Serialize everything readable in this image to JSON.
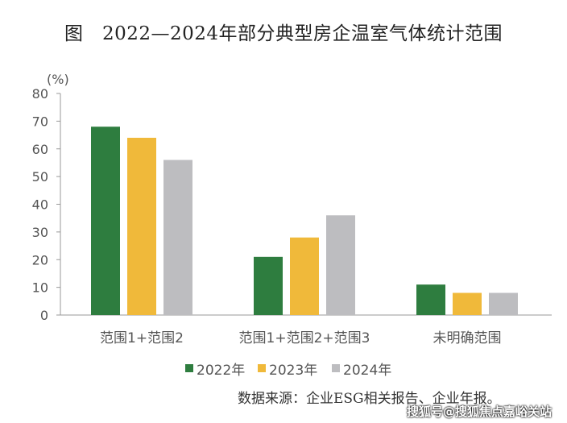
{
  "chart_data": {
    "type": "bar",
    "title": "图　2022—2024年部分典型房企温室气体统计范围",
    "ylabel": "(%)",
    "ylim": [
      0,
      80
    ],
    "yticks": [
      0,
      10,
      20,
      30,
      40,
      50,
      60,
      70,
      80
    ],
    "categories": [
      "范围1+范围2",
      "范围1+范围2+范围3",
      "未明确范围"
    ],
    "series": [
      {
        "name": "2022年",
        "color": "#2e7d3f",
        "values": [
          68,
          21,
          11
        ]
      },
      {
        "name": "2023年",
        "color": "#f0b93a",
        "values": [
          64,
          28,
          8
        ]
      },
      {
        "name": "2024年",
        "color": "#bdbdc0",
        "values": [
          56,
          36,
          8
        ]
      }
    ],
    "legend": "bottom",
    "grid": false,
    "source": "数据来源：企业ESG相关报告、企业年报。"
  },
  "watermark": "搜狐号@搜狐焦点嘉峪关站"
}
